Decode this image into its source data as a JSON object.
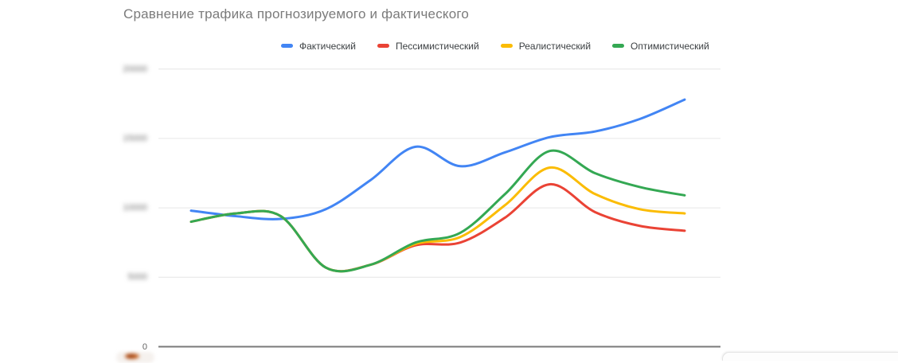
{
  "chart": {
    "title": "Сравнение трафика прогнозируемого и фактического",
    "title_color": "#7b7b7b",
    "y_axis": {
      "ticks": [
        {
          "label": "20000",
          "blurred": true
        },
        {
          "label": "15000",
          "blurred": true
        },
        {
          "label": "10000",
          "blurred": true
        },
        {
          "label": "5000",
          "blurred": true
        },
        {
          "label": "0",
          "blurred": false
        }
      ]
    },
    "x_axis": {
      "labels_visible": false
    }
  },
  "chart_data": {
    "type": "line",
    "smooth": true,
    "title": "Сравнение трафика прогнозируемого и фактического",
    "legend_position": "top",
    "grid": true,
    "ylim": [
      0,
      20000
    ],
    "yticks": [
      0,
      5000,
      10000,
      15000,
      20000
    ],
    "xlabel": "",
    "ylabel": "",
    "x": [
      1,
      2,
      3,
      4,
      5,
      6,
      7,
      8,
      9,
      10,
      11,
      12
    ],
    "series": [
      {
        "name": "Фактический",
        "color": "#4285f4",
        "values": [
          9800,
          9400,
          9200,
          9900,
          12000,
          14400,
          13000,
          14000,
          15100,
          15500,
          16400,
          17800
        ]
      },
      {
        "name": "Пессимистический",
        "color": "#ea4335",
        "values": [
          9000,
          9600,
          9400,
          5700,
          5900,
          7300,
          7500,
          9300,
          11700,
          9700,
          8700,
          8350
        ]
      },
      {
        "name": "Реалистический",
        "color": "#fbbc04",
        "values": [
          9000,
          9600,
          9400,
          5700,
          5900,
          7400,
          7900,
          10200,
          12900,
          11000,
          9900,
          9600
        ]
      },
      {
        "name": "Оптимистический",
        "color": "#34a853",
        "values": [
          9000,
          9600,
          9400,
          5700,
          5900,
          7500,
          8200,
          11000,
          14100,
          12500,
          11500,
          10900
        ]
      }
    ]
  },
  "colors": {
    "gridline": "#e6e6e6",
    "baseline": "#7a7a7a",
    "axis_text": "#616161"
  }
}
